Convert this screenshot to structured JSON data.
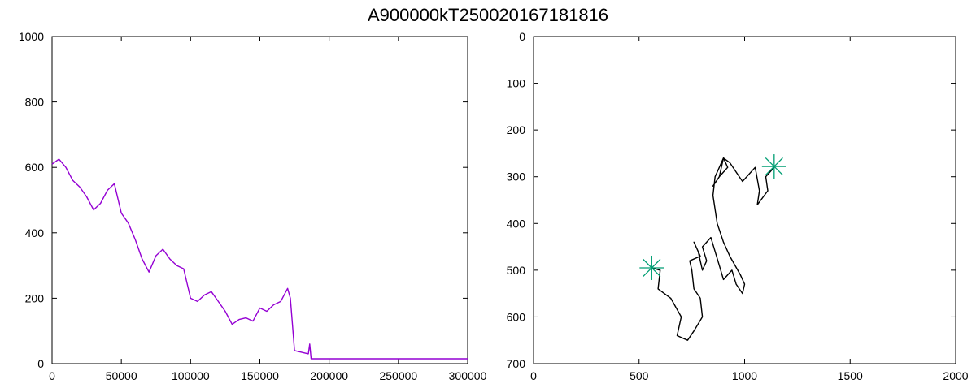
{
  "title": "A900000kT250020167181816",
  "chart_data": [
    {
      "type": "line",
      "title": "",
      "xlabel": "",
      "ylabel": "",
      "xlim": [
        0,
        300000
      ],
      "ylim": [
        0,
        1000
      ],
      "x_ticks": [
        "0",
        "50000",
        "100000",
        "150000",
        "200000",
        "250000",
        "300000"
      ],
      "y_ticks": [
        "0",
        "200",
        "400",
        "600",
        "800",
        "1000"
      ],
      "grid": false,
      "series": [
        {
          "color": "#9400d3",
          "x": [
            0,
            5000,
            10000,
            15000,
            20000,
            25000,
            30000,
            35000,
            40000,
            45000,
            50000,
            55000,
            60000,
            65000,
            70000,
            75000,
            80000,
            85000,
            90000,
            95000,
            100000,
            105000,
            110000,
            115000,
            120000,
            125000,
            130000,
            135000,
            140000,
            145000,
            150000,
            155000,
            160000,
            165000,
            170000,
            172000,
            175000,
            180000,
            185000,
            186000,
            187000,
            200000,
            250000,
            300000
          ],
          "y": [
            610,
            625,
            600,
            560,
            540,
            510,
            470,
            490,
            530,
            550,
            460,
            430,
            380,
            320,
            280,
            330,
            350,
            320,
            300,
            290,
            200,
            190,
            210,
            220,
            190,
            160,
            120,
            135,
            140,
            130,
            170,
            160,
            180,
            190,
            230,
            200,
            40,
            35,
            30,
            60,
            15,
            15,
            15,
            15
          ]
        }
      ]
    },
    {
      "type": "line",
      "title": "",
      "xlabel": "",
      "ylabel": "",
      "xlim": [
        0,
        2000
      ],
      "ylim": [
        0,
        700
      ],
      "y_inverted": true,
      "x_ticks": [
        "0",
        "500",
        "1000",
        "1500",
        "2000"
      ],
      "y_ticks": [
        "0",
        "100",
        "200",
        "300",
        "400",
        "500",
        "600",
        "700"
      ],
      "grid": false,
      "series": [
        {
          "color": "#000000",
          "x": [
            560,
            600,
            590,
            650,
            700,
            680,
            730,
            760,
            800,
            790,
            760,
            750,
            740,
            790,
            760,
            780,
            800,
            820,
            800,
            840,
            860,
            880,
            900,
            940,
            960,
            990,
            1000,
            980,
            930,
            900,
            870,
            860,
            850,
            860,
            880,
            900,
            880,
            850,
            880,
            920,
            900,
            930,
            960,
            990,
            1050,
            1070,
            1060,
            1110,
            1100,
            1120,
            1140
          ],
          "y": [
            495,
            500,
            540,
            560,
            600,
            640,
            650,
            630,
            600,
            560,
            540,
            500,
            480,
            470,
            440,
            460,
            500,
            480,
            450,
            430,
            460,
            490,
            520,
            500,
            530,
            550,
            530,
            510,
            470,
            440,
            400,
            370,
            340,
            300,
            280,
            260,
            300,
            320,
            300,
            280,
            260,
            270,
            290,
            310,
            280,
            330,
            360,
            330,
            300,
            290,
            280
          ]
        }
      ],
      "markers": [
        {
          "x": 560,
          "y": 495,
          "color": "#009e73"
        },
        {
          "x": 1140,
          "y": 278,
          "color": "#009e73"
        }
      ]
    }
  ]
}
